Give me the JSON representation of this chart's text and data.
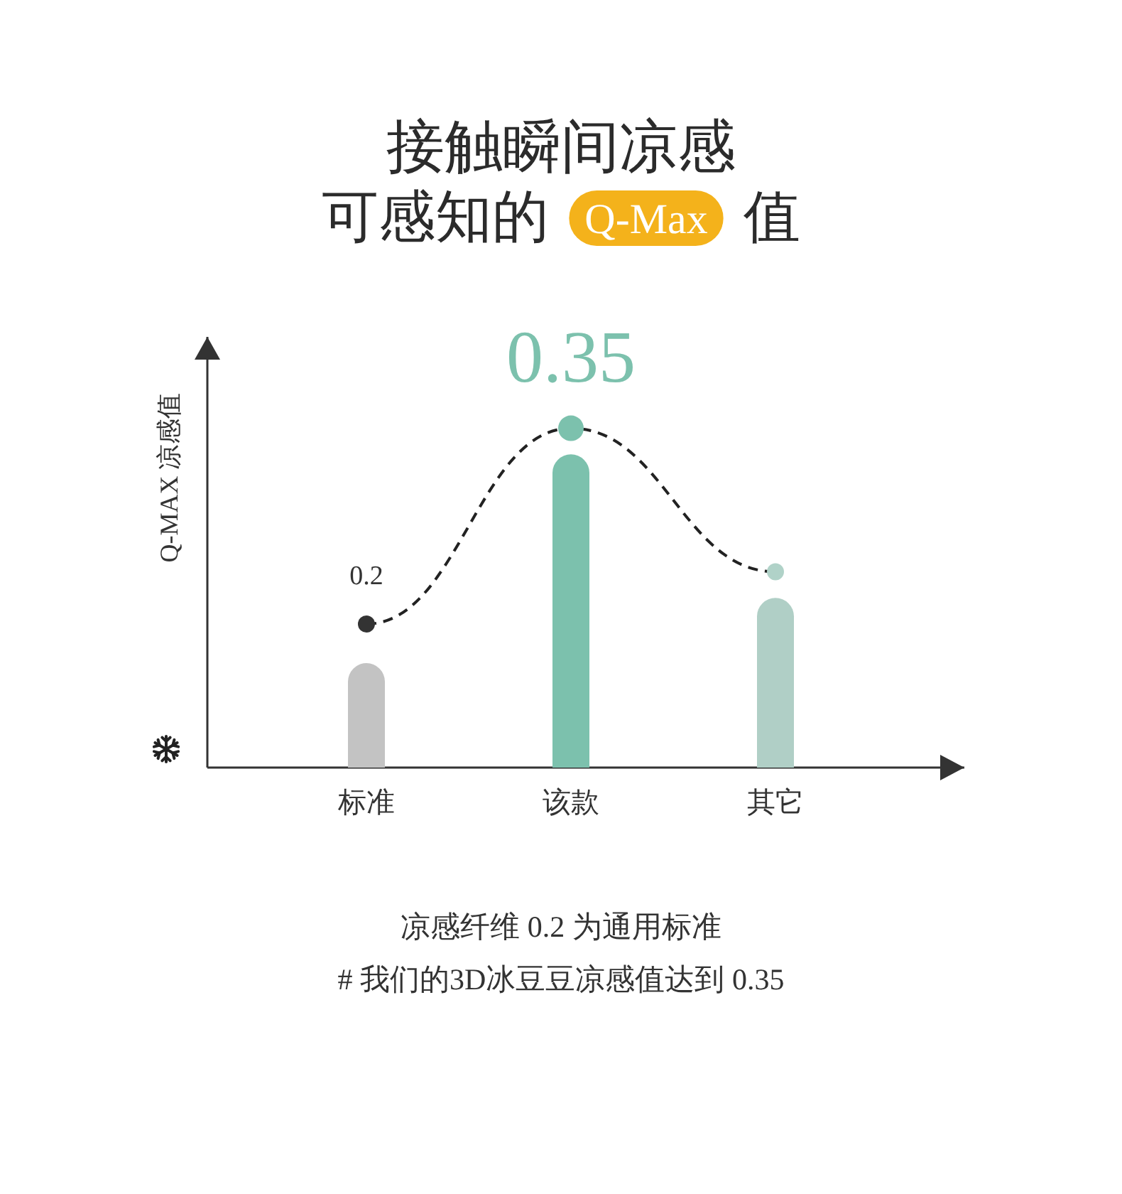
{
  "chart_data": {
    "type": "bar",
    "title": "接触瞬间凉感",
    "subtitle": "可感知的 Q-Max 值",
    "ylabel": "Q-MAX 凉感值",
    "categories": [
      "标准",
      "该款",
      "其它"
    ],
    "ylim": [
      0.09,
      0.42
    ],
    "marker": "circle",
    "line_style": "dashed",
    "series": [
      {
        "colors": [
          "#c3c3c3",
          "#7cc1ad",
          "#b0cfc6"
        ],
        "values": [
          0.17,
          0.33,
          0.22
        ]
      },
      {
        "type": "line",
        "color": "#222222",
        "colors": [
          "#333333",
          "#7cc1ad",
          "#b0d2c8"
        ],
        "values": [
          0.2,
          0.35,
          0.24
        ],
        "value_labels": [
          "0.2",
          "0.35",
          null
        ]
      }
    ],
    "annotations": [
      "凉感纤维 0.2 为通用标准",
      "# 我们的3D冰豆豆凉感值达到 0.35"
    ]
  }
}
